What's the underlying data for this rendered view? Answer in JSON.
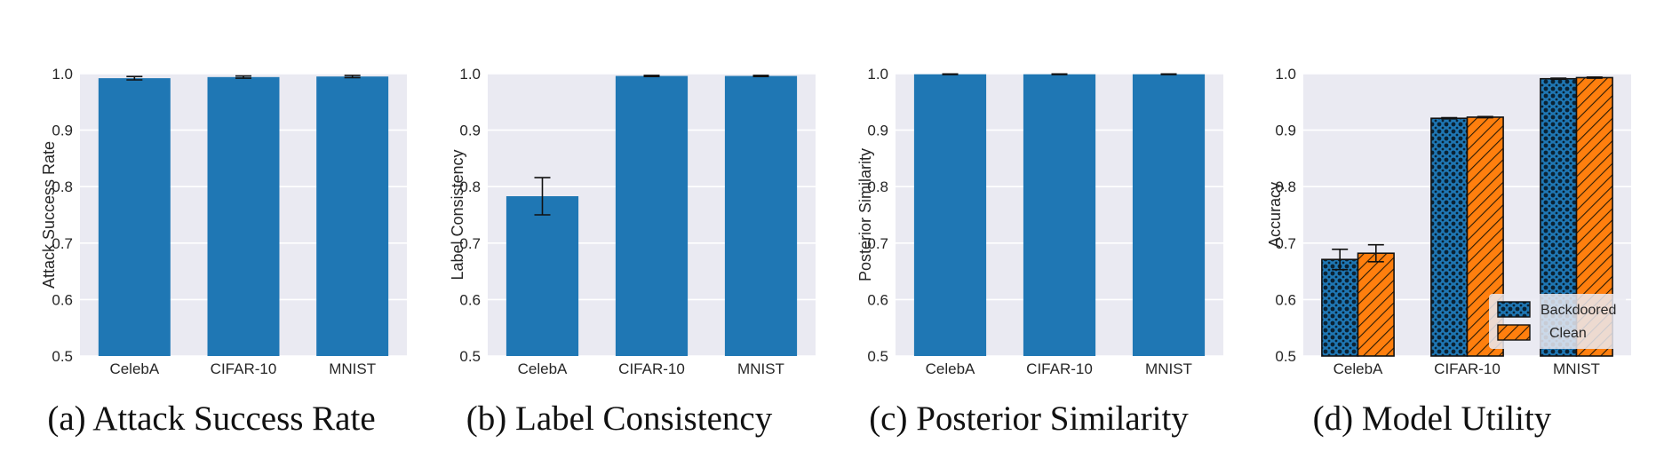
{
  "colors": {
    "bar": "#1f77b4",
    "clean": "#ff7f0e",
    "plot_bg": "#eaeaf2",
    "grid": "#ffffff"
  },
  "chart_data": [
    {
      "type": "bar",
      "caption": "(a) Attack Success Rate",
      "ylabel": "Attack Success Rate",
      "categories": [
        "CelebA",
        "CIFAR-10",
        "MNIST"
      ],
      "yticks": [
        "0.5",
        "0.6",
        "0.7",
        "0.8",
        "0.9",
        "1.0"
      ],
      "ylim": [
        0.5,
        1.0
      ],
      "grid": true,
      "series": [
        {
          "values": [
            0.992,
            0.994,
            0.995
          ],
          "errors": [
            0.003,
            0.002,
            0.002
          ]
        }
      ]
    },
    {
      "type": "bar",
      "caption": "(b) Label Consistency",
      "ylabel": "Label Consistency",
      "categories": [
        "CelebA",
        "CIFAR-10",
        "MNIST"
      ],
      "yticks": [
        "0.5",
        "0.6",
        "0.7",
        "0.8",
        "0.9",
        "1.0"
      ],
      "ylim": [
        0.5,
        1.0
      ],
      "grid": true,
      "series": [
        {
          "values": [
            0.783,
            0.996,
            0.996
          ],
          "errors": [
            0.033,
            0.001,
            0.001
          ]
        }
      ]
    },
    {
      "type": "bar",
      "caption": "(c) Posterior Similarity",
      "ylabel": "Posterior  Similarity",
      "categories": [
        "CelebA",
        "CIFAR-10",
        "MNIST"
      ],
      "yticks": [
        "0.5",
        "0.6",
        "0.7",
        "0.8",
        "0.9",
        "1.0"
      ],
      "ylim": [
        0.5,
        1.0
      ],
      "grid": true,
      "series": [
        {
          "values": [
            0.999,
            0.999,
            0.999
          ],
          "errors": [
            0.0005,
            0.0005,
            0.0005
          ]
        }
      ]
    },
    {
      "type": "bar",
      "caption": "(d) Model Utility",
      "ylabel": "Accuracy",
      "categories": [
        "CelebA",
        "CIFAR-10",
        "MNIST"
      ],
      "yticks": [
        "0.5",
        "0.6",
        "0.7",
        "0.8",
        "0.9",
        "1.0"
      ],
      "ylim": [
        0.5,
        1.0
      ],
      "grid": true,
      "legend": "lower-right",
      "series": [
        {
          "name": "Backdoored",
          "values": [
            0.671,
            0.921,
            0.991
          ],
          "errors": [
            0.018,
            0.001,
            0.001
          ]
        },
        {
          "name": "Clean",
          "values": [
            0.682,
            0.923,
            0.993
          ],
          "errors": [
            0.015,
            0.001,
            0.001
          ]
        }
      ]
    }
  ]
}
